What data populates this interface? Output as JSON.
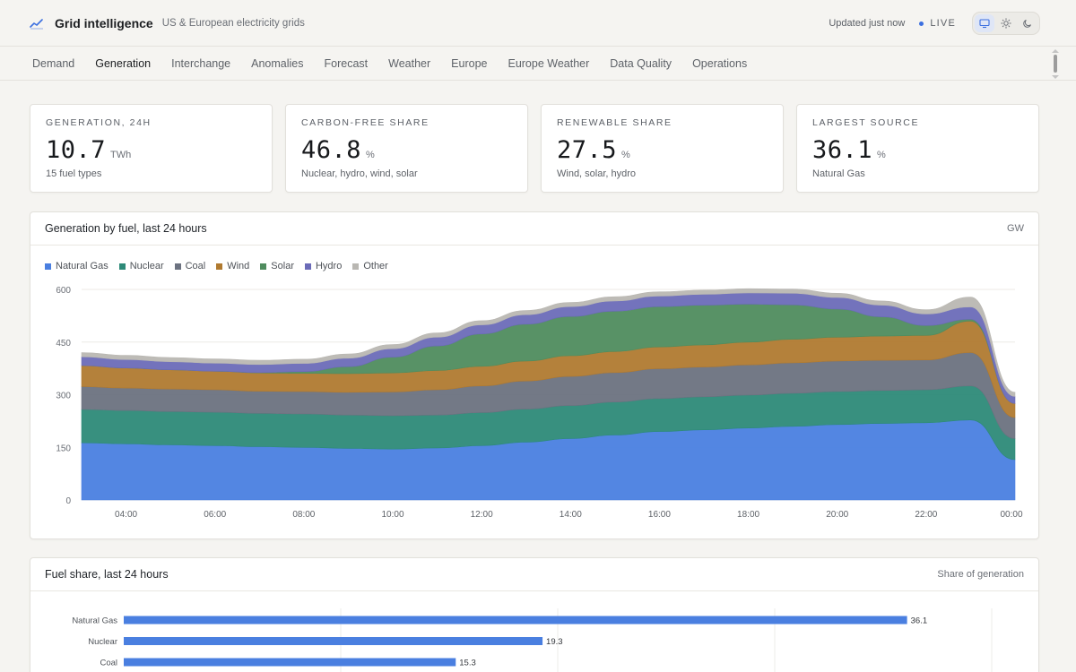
{
  "header": {
    "title": "Grid intelligence",
    "subtitle": "US & European electricity grids",
    "updated": "Updated just now",
    "live": "LIVE",
    "icons": [
      "trend-line-icon",
      "monitor-icon",
      "sun-icon",
      "moon-icon"
    ]
  },
  "tabs": [
    {
      "label": "Demand",
      "active": false
    },
    {
      "label": "Generation",
      "active": true
    },
    {
      "label": "Interchange",
      "active": false
    },
    {
      "label": "Anomalies",
      "active": false
    },
    {
      "label": "Forecast",
      "active": false
    },
    {
      "label": "Weather",
      "active": false
    },
    {
      "label": "Europe",
      "active": false
    },
    {
      "label": "Europe Weather",
      "active": false
    },
    {
      "label": "Data Quality",
      "active": false
    },
    {
      "label": "Operations",
      "active": false
    }
  ],
  "kpis": [
    {
      "label": "GENERATION, 24H",
      "value": "10.7",
      "unit": "TWh",
      "sub": "15 fuel types"
    },
    {
      "label": "CARBON-FREE SHARE",
      "value": "46.8",
      "unit": "%",
      "sub": "Nuclear, hydro, wind, solar"
    },
    {
      "label": "RENEWABLE SHARE",
      "value": "27.5",
      "unit": "%",
      "sub": "Wind, solar, hydro"
    },
    {
      "label": "LARGEST SOURCE",
      "value": "36.1",
      "unit": "%",
      "sub": "Natural Gas"
    }
  ],
  "colors": {
    "accent": "#3b6fe0",
    "natural_gas": "#4a7fe0",
    "nuclear": "#2d8a78",
    "coal": "#6c7280",
    "wind": "#b07a30",
    "solar": "#4f8c5e",
    "hydro": "#6b6bb8",
    "other": "#b9b7b2"
  },
  "generation_panel": {
    "title": "Generation by fuel, last 24 hours",
    "unit": "GW"
  },
  "share_panel": {
    "title": "Fuel share, last 24 hours",
    "unit": "Share of generation"
  },
  "chart_data": [
    {
      "type": "area",
      "title": "Generation by fuel, last 24 hours",
      "ylabel": "GW",
      "stacked": true,
      "ylim": [
        0,
        600
      ],
      "yticks": [
        0,
        150,
        300,
        450,
        600
      ],
      "x_range": [
        "03:00",
        "00:00"
      ],
      "x": [
        "03:00",
        "04:00",
        "05:00",
        "06:00",
        "07:00",
        "08:00",
        "09:00",
        "10:00",
        "11:00",
        "12:00",
        "13:00",
        "14:00",
        "15:00",
        "16:00",
        "17:00",
        "18:00",
        "19:00",
        "20:00",
        "21:00",
        "22:00",
        "23:00",
        "00:00"
      ],
      "xticks": [
        "04:00",
        "06:00",
        "08:00",
        "10:00",
        "12:00",
        "14:00",
        "16:00",
        "18:00",
        "20:00",
        "22:00",
        "00:00"
      ],
      "legend_position": "top-left",
      "grid": true,
      "series": [
        {
          "name": "Natural Gas",
          "color": "#4a7fe0",
          "values": [
            163,
            160,
            157,
            155,
            152,
            150,
            147,
            145,
            148,
            155,
            165,
            175,
            185,
            195,
            200,
            205,
            210,
            215,
            218,
            220,
            228,
            115
          ]
        },
        {
          "name": "Nuclear",
          "color": "#2d8a78",
          "values": [
            95,
            95,
            95,
            95,
            95,
            95,
            95,
            95,
            94,
            94,
            94,
            94,
            94,
            94,
            94,
            94,
            94,
            94,
            94,
            94,
            97,
            60
          ]
        },
        {
          "name": "Coal",
          "color": "#6c7280",
          "values": [
            65,
            64,
            64,
            64,
            63,
            64,
            65,
            68,
            72,
            76,
            80,
            83,
            84,
            85,
            85,
            86,
            87,
            87,
            86,
            85,
            95,
            60
          ]
        },
        {
          "name": "Wind",
          "color": "#b07a30",
          "values": [
            60,
            57,
            55,
            53,
            52,
            52,
            53,
            54,
            55,
            56,
            57,
            59,
            60,
            62,
            63,
            65,
            67,
            68,
            69,
            70,
            90,
            40
          ]
        },
        {
          "name": "Solar",
          "color": "#4f8c5e",
          "values": [
            0,
            0,
            0,
            0,
            1,
            5,
            20,
            45,
            70,
            92,
            105,
            112,
            115,
            115,
            113,
            108,
            98,
            80,
            55,
            28,
            5,
            0
          ]
        },
        {
          "name": "Hydro",
          "color": "#6b6bb8",
          "values": [
            25,
            24,
            23,
            23,
            23,
            23,
            24,
            24,
            25,
            26,
            27,
            28,
            29,
            30,
            31,
            32,
            33,
            33,
            33,
            33,
            35,
            20
          ]
        },
        {
          "name": "Other",
          "color": "#b9b7b2",
          "values": [
            12,
            12,
            12,
            12,
            12,
            12,
            12,
            12,
            12,
            12,
            12,
            12,
            12,
            12,
            12,
            12,
            12,
            12,
            12,
            12,
            28,
            12
          ]
        }
      ]
    },
    {
      "type": "bar",
      "orientation": "horizontal",
      "title": "Fuel share, last 24 hours",
      "xlabel": "Share of generation",
      "xlim": [
        0,
        40
      ],
      "categories": [
        "Natural Gas",
        "Nuclear",
        "Coal"
      ],
      "values": [
        36.1,
        19.3,
        15.3
      ],
      "value_labels": [
        "36.1",
        "19.3",
        "15.3"
      ],
      "color": "#4a7fe0"
    }
  ]
}
